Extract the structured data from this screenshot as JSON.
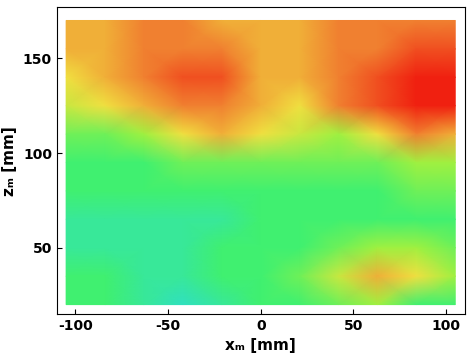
{
  "chart_data": {
    "type": "heatmap",
    "x_label": "xₘ [mm]",
    "y_label": "zₘ [mm]",
    "x": [
      -105,
      -84,
      -63,
      -42,
      -21,
      0,
      21,
      42,
      63,
      84,
      105
    ],
    "y": [
      170,
      155,
      140,
      125,
      110,
      95,
      80,
      65,
      50,
      35,
      20
    ],
    "cells": [
      [
        7,
        7,
        8,
        8,
        7,
        7,
        7,
        8,
        8,
        8,
        8
      ],
      [
        7,
        7,
        8,
        8,
        8,
        7,
        7,
        8,
        8,
        9,
        9
      ],
      [
        6,
        7,
        8,
        9,
        9,
        7,
        7,
        8,
        9,
        10,
        10
      ],
      [
        5,
        6,
        7,
        8,
        8,
        7,
        6,
        8,
        9,
        10,
        10
      ],
      [
        3,
        3,
        4,
        6,
        7,
        6,
        5,
        4,
        6,
        8,
        7
      ],
      [
        2,
        2,
        2,
        3,
        3,
        3,
        3,
        3,
        3,
        4,
        4
      ],
      [
        2,
        2,
        2,
        2,
        2,
        2,
        2,
        2,
        2,
        3,
        3
      ],
      [
        1,
        1,
        1,
        1,
        1,
        2,
        2,
        2,
        2,
        2,
        2
      ],
      [
        1,
        1,
        1,
        1,
        2,
        2,
        2,
        3,
        4,
        4,
        3
      ],
      [
        2,
        2,
        1,
        1,
        2,
        2,
        3,
        5,
        7,
        6,
        4
      ],
      [
        2,
        2,
        1,
        0,
        1,
        2,
        2,
        3,
        4,
        2,
        2
      ]
    ],
    "xlim": [
      -110,
      110
    ],
    "ylim": [
      15,
      177
    ],
    "xticks": [
      -100,
      -50,
      0,
      50,
      100
    ],
    "yticks": [
      50,
      100,
      150
    ]
  }
}
